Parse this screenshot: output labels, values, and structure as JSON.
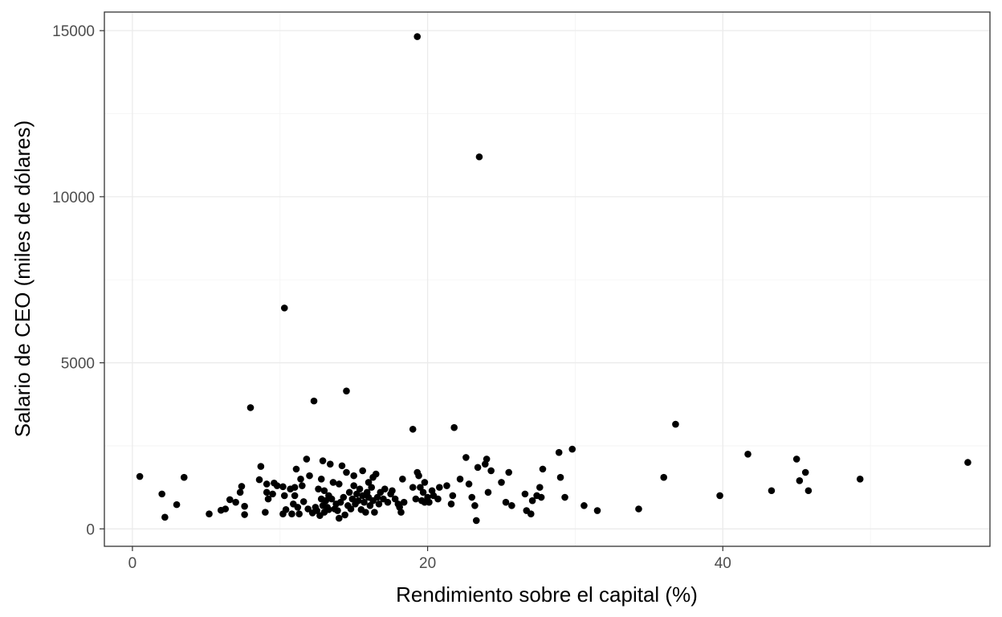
{
  "chart_data": {
    "type": "scatter",
    "title": "",
    "xlabel": "Rendimiento sobre el capital (%)",
    "ylabel": "Salario de CEO (miles de dólares)",
    "xlim": [
      -1.9,
      58.1
    ],
    "ylim": [
      -525,
      15560
    ],
    "xticks": [
      0,
      20,
      40
    ],
    "xtick_labels": [
      "0",
      "20",
      "40"
    ],
    "yticks": [
      0,
      5000,
      10000,
      15000
    ],
    "ytick_labels": [
      "0",
      "5000",
      "10000",
      "15000"
    ],
    "x_minor": [
      10,
      30,
      50
    ],
    "y_minor": [
      2500,
      7500,
      12500
    ],
    "grid": true,
    "point_color": "#000000",
    "points": [
      [
        0.5,
        1578
      ],
      [
        2.0,
        1050
      ],
      [
        2.2,
        350
      ],
      [
        3.0,
        730
      ],
      [
        3.5,
        1550
      ],
      [
        5.2,
        450
      ],
      [
        6.0,
        560
      ],
      [
        6.3,
        600
      ],
      [
        6.6,
        880
      ],
      [
        7.0,
        800
      ],
      [
        7.3,
        1100
      ],
      [
        7.4,
        1280
      ],
      [
        7.6,
        680
      ],
      [
        7.6,
        430
      ],
      [
        8.0,
        3650
      ],
      [
        8.6,
        1480
      ],
      [
        8.7,
        1880
      ],
      [
        9.0,
        500
      ],
      [
        9.1,
        1100
      ],
      [
        9.1,
        1350
      ],
      [
        9.2,
        900
      ],
      [
        9.5,
        1050
      ],
      [
        9.6,
        1380
      ],
      [
        9.8,
        1300
      ],
      [
        10.2,
        1270
      ],
      [
        10.2,
        450
      ],
      [
        10.3,
        1000
      ],
      [
        10.3,
        6650
      ],
      [
        10.4,
        580
      ],
      [
        10.7,
        1200
      ],
      [
        10.8,
        450
      ],
      [
        10.9,
        750
      ],
      [
        11.0,
        1000
      ],
      [
        11.0,
        1250
      ],
      [
        11.1,
        1800
      ],
      [
        11.2,
        650
      ],
      [
        11.3,
        450
      ],
      [
        11.4,
        1500
      ],
      [
        11.5,
        1300
      ],
      [
        11.6,
        820
      ],
      [
        11.8,
        2100
      ],
      [
        11.9,
        600
      ],
      [
        12.0,
        1600
      ],
      [
        12.2,
        480
      ],
      [
        12.3,
        3850
      ],
      [
        12.4,
        650
      ],
      [
        12.5,
        550
      ],
      [
        12.6,
        1200
      ],
      [
        12.7,
        400
      ],
      [
        12.8,
        900
      ],
      [
        12.8,
        1500
      ],
      [
        12.9,
        700
      ],
      [
        12.9,
        2050
      ],
      [
        13.0,
        500
      ],
      [
        13.0,
        1150
      ],
      [
        13.1,
        850
      ],
      [
        13.2,
        650
      ],
      [
        13.3,
        1000
      ],
      [
        13.3,
        580
      ],
      [
        13.4,
        1950
      ],
      [
        13.5,
        900
      ],
      [
        13.6,
        1400
      ],
      [
        13.7,
        600
      ],
      [
        13.8,
        750
      ],
      [
        13.9,
        550
      ],
      [
        14.0,
        320
      ],
      [
        14.0,
        1350
      ],
      [
        14.1,
        800
      ],
      [
        14.2,
        1900
      ],
      [
        14.3,
        950
      ],
      [
        14.4,
        420
      ],
      [
        14.5,
        1700
      ],
      [
        14.5,
        4150
      ],
      [
        14.6,
        700
      ],
      [
        14.7,
        1100
      ],
      [
        14.8,
        600
      ],
      [
        14.9,
        900
      ],
      [
        15.0,
        1300
      ],
      [
        15.0,
        1600
      ],
      [
        15.1,
        750
      ],
      [
        15.2,
        1050
      ],
      [
        15.3,
        850
      ],
      [
        15.4,
        1200
      ],
      [
        15.5,
        580
      ],
      [
        15.6,
        1000
      ],
      [
        15.6,
        1750
      ],
      [
        15.7,
        800
      ],
      [
        15.8,
        500
      ],
      [
        15.9,
        1100
      ],
      [
        16.0,
        950
      ],
      [
        16.0,
        1400
      ],
      [
        16.1,
        700
      ],
      [
        16.2,
        1250
      ],
      [
        16.3,
        850
      ],
      [
        16.3,
        1550
      ],
      [
        16.4,
        500
      ],
      [
        16.5,
        1650
      ],
      [
        16.6,
        950
      ],
      [
        16.7,
        750
      ],
      [
        16.8,
        1100
      ],
      [
        17.0,
        900
      ],
      [
        17.1,
        1200
      ],
      [
        17.3,
        800
      ],
      [
        17.5,
        1050
      ],
      [
        17.6,
        1150
      ],
      [
        17.8,
        900
      ],
      [
        18.0,
        750
      ],
      [
        18.1,
        650
      ],
      [
        18.2,
        500
      ],
      [
        18.3,
        1500
      ],
      [
        18.4,
        800
      ],
      [
        19.0,
        1250
      ],
      [
        19.0,
        3000
      ],
      [
        19.2,
        900
      ],
      [
        19.3,
        1700
      ],
      [
        19.3,
        14820
      ],
      [
        19.4,
        1600
      ],
      [
        19.5,
        1250
      ],
      [
        19.6,
        850
      ],
      [
        19.7,
        1100
      ],
      [
        19.8,
        1400
      ],
      [
        19.8,
        800
      ],
      [
        20.0,
        950
      ],
      [
        20.1,
        800
      ],
      [
        20.3,
        1150
      ],
      [
        20.4,
        1000
      ],
      [
        20.7,
        900
      ],
      [
        20.8,
        1250
      ],
      [
        21.3,
        1300
      ],
      [
        21.6,
        750
      ],
      [
        21.7,
        1000
      ],
      [
        21.8,
        3050
      ],
      [
        22.2,
        1500
      ],
      [
        22.6,
        2150
      ],
      [
        22.8,
        1350
      ],
      [
        23.0,
        950
      ],
      [
        23.2,
        700
      ],
      [
        23.3,
        250
      ],
      [
        23.4,
        1850
      ],
      [
        23.5,
        11200
      ],
      [
        23.9,
        1950
      ],
      [
        24.0,
        2100
      ],
      [
        24.1,
        1100
      ],
      [
        24.3,
        1750
      ],
      [
        25.0,
        1400
      ],
      [
        25.3,
        800
      ],
      [
        25.5,
        1700
      ],
      [
        25.7,
        700
      ],
      [
        26.6,
        1050
      ],
      [
        26.7,
        550
      ],
      [
        27.0,
        450
      ],
      [
        27.1,
        850
      ],
      [
        27.4,
        1000
      ],
      [
        27.6,
        1250
      ],
      [
        27.7,
        950
      ],
      [
        27.8,
        1800
      ],
      [
        28.9,
        2300
      ],
      [
        29.0,
        1550
      ],
      [
        29.3,
        950
      ],
      [
        29.8,
        2400
      ],
      [
        30.6,
        700
      ],
      [
        31.5,
        550
      ],
      [
        34.3,
        600
      ],
      [
        36.0,
        1550
      ],
      [
        36.8,
        3150
      ],
      [
        39.8,
        1000
      ],
      [
        41.7,
        2250
      ],
      [
        43.3,
        1150
      ],
      [
        45.0,
        2100
      ],
      [
        45.2,
        1450
      ],
      [
        45.6,
        1700
      ],
      [
        45.8,
        1150
      ],
      [
        49.3,
        1500
      ],
      [
        56.6,
        2000
      ]
    ]
  }
}
